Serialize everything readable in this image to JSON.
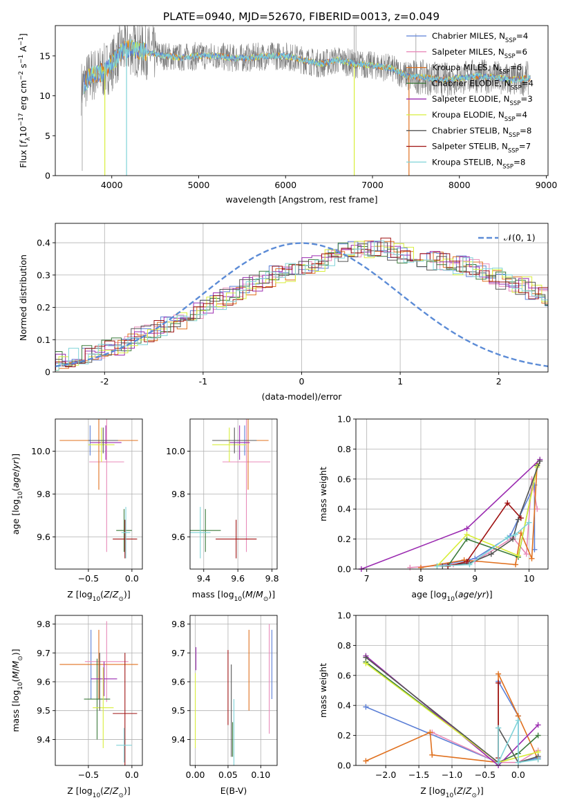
{
  "figure_title": "PLATE=0940, MJD=52670, FIBERID=0013, z=0.049",
  "colors": {
    "Chabrier MILES": "#5b7fd6",
    "Salpeter MILES": "#e88ab8",
    "Kroupa MILES": "#e0701e",
    "Chabrier ELODIE": "#3a7a3a",
    "Salpeter ELODIE": "#9a2ab0",
    "Kroupa ELODIE": "#d8ee3a",
    "Chabrier STELIB": "#555555",
    "Salpeter STELIB": "#9e1010",
    "Kroupa STELIB": "#7fd3d8",
    "data_grey": "#777777",
    "normal_curve": "#5b8bd6"
  },
  "chart_data": [
    {
      "id": "spectrum",
      "type": "line",
      "xlabel": "wavelength [Angstrom, rest frame]",
      "ylabel": "Flux [f_λ 10^-17 erg cm^-2 s^-1 A^-1]",
      "ylabel_parts": {
        "pre": "Flux [",
        "f": "f",
        "fsub": "λ",
        "mid": "10",
        "exp1": "−17",
        "unit": " erg cm",
        "exp2": "−2",
        "unit2": " s",
        "exp3": "−1",
        "end": " A",
        "exp4": "−1",
        "close": "]"
      },
      "xlim": [
        3350,
        9020
      ],
      "ylim": [
        0,
        18.8
      ],
      "xticks": [
        4000,
        5000,
        6000,
        7000,
        8000,
        9000
      ],
      "yticks": [
        0,
        5,
        10,
        15
      ],
      "grid": false,
      "legend_position": "top-right",
      "legend": [
        {
          "label": "Chabrier MILES, N",
          "sub": "SSP",
          "eq": "=4"
        },
        {
          "label": "Salpeter MILES, N",
          "sub": "SSP",
          "eq": "=6"
        },
        {
          "label": "Kroupa MILES, N",
          "sub": "SSP",
          "eq": "=6"
        },
        {
          "label": "Chabrier ELODIE, N",
          "sub": "SSP",
          "eq": "=4"
        },
        {
          "label": "Salpeter ELODIE, N",
          "sub": "SSP",
          "eq": "=3"
        },
        {
          "label": "Kroupa ELODIE, N",
          "sub": "SSP",
          "eq": "=4"
        },
        {
          "label": "Chabrier STELIB, N",
          "sub": "SSP",
          "eq": "=8"
        },
        {
          "label": "Salpeter STELIB, N",
          "sub": "SSP",
          "eq": "=7"
        },
        {
          "label": "Kroupa STELIB, N",
          "sub": "SSP",
          "eq": "=8"
        }
      ],
      "data_envelope": {
        "x": [
          3650,
          3750,
          3900,
          4000,
          4100,
          4200,
          4400,
          4600,
          4800,
          5000,
          5200,
          5400,
          5600,
          5800,
          6000,
          6200,
          6400,
          6600,
          6800,
          7000,
          7200,
          7400,
          7600,
          7800,
          8000,
          8200,
          8400,
          8600,
          8800
        ],
        "y": [
          11,
          12.5,
          13,
          14,
          15.5,
          16,
          15.5,
          15,
          14.8,
          15,
          15,
          14.7,
          14.8,
          15,
          15,
          14.5,
          14,
          14.5,
          14,
          13.8,
          13.5,
          12.5,
          12.3,
          12,
          12.2,
          12.5,
          12.3,
          12,
          12.2
        ]
      },
      "drops": [
        {
          "x": 3920,
          "color": "Kroupa ELODIE"
        },
        {
          "x": 4170,
          "color": "Kroupa STELIB"
        },
        {
          "x": 6790,
          "color": "Kroupa ELODIE"
        },
        {
          "x": 7420,
          "color": "Kroupa MILES"
        }
      ]
    },
    {
      "id": "residual-histogram",
      "type": "histogram",
      "xlabel": "(data-model)/error",
      "ylabel": "Normed distribution",
      "xlim": [
        -2.5,
        2.5
      ],
      "ylim": [
        0,
        0.46
      ],
      "xticks": [
        -2,
        -1,
        0,
        1,
        2
      ],
      "yticks": [
        0,
        0.1,
        0.2,
        0.3,
        0.4
      ],
      "grid": true,
      "legend_position": "top-right",
      "legend_label": "𝒩(0, 1)",
      "bin_width": 0.1,
      "base_values": [
        0.035,
        0.04,
        0.045,
        0.05,
        0.055,
        0.06,
        0.07,
        0.08,
        0.095,
        0.11,
        0.12,
        0.13,
        0.145,
        0.16,
        0.175,
        0.19,
        0.205,
        0.22,
        0.235,
        0.25,
        0.265,
        0.28,
        0.29,
        0.3,
        0.31,
        0.32,
        0.33,
        0.34,
        0.35,
        0.36,
        0.37,
        0.375,
        0.38,
        0.385,
        0.385,
        0.375,
        0.36,
        0.355,
        0.35,
        0.345,
        0.34,
        0.33,
        0.33,
        0.32,
        0.31,
        0.3,
        0.285,
        0.275,
        0.265,
        0.25,
        0.235,
        0.22,
        0.205,
        0.19,
        0.175,
        0.16,
        0.15,
        0.14,
        0.13,
        0.12,
        0.11,
        0.1,
        0.09,
        0.085,
        0.075,
        0.07,
        0.06,
        0.055,
        0.05,
        0.045,
        0.04,
        0.035,
        0.03,
        0.03,
        0.025,
        0.028,
        0.03,
        0.028,
        0.025,
        0.025
      ]
    },
    {
      "id": "age-vs-Z",
      "type": "errorbar",
      "xlabel": "Z [log10(Z/Z⊙)]",
      "ylabel": "age [log10(age/yr)]",
      "xlim": [
        -0.88,
        0.12
      ],
      "ylim": [
        9.45,
        10.15
      ],
      "xticks": [
        -0.5,
        0.0
      ],
      "xticklabels": [
        "−0.5",
        "0.0"
      ],
      "yticks": [
        9.6,
        9.8,
        10.0
      ],
      "yticklabels": [
        "9.6",
        "9.8",
        "10.0"
      ],
      "grid": true,
      "points": [
        {
          "series": "Chabrier MILES",
          "x": -0.48,
          "xerr": 0.17,
          "y": 10.05,
          "yerr": 0.07
        },
        {
          "series": "Salpeter MILES",
          "x": -0.29,
          "xerr": 0.2,
          "y": 9.95,
          "yerr": 0.42
        },
        {
          "series": "Kroupa MILES",
          "x": -0.38,
          "xerr": 0.45,
          "y": 10.05,
          "yerr": 0.23
        },
        {
          "series": "Chabrier ELODIE",
          "x": -0.09,
          "xerr": 0.09,
          "y": 9.63,
          "yerr": 0.1
        },
        {
          "series": "Salpeter ELODIE",
          "x": -0.3,
          "xerr": 0.18,
          "y": 10.04,
          "yerr": 0.08
        },
        {
          "series": "Kroupa ELODIE",
          "x": -0.35,
          "xerr": 0.15,
          "y": 10.03,
          "yerr": 0.08
        },
        {
          "series": "Chabrier STELIB",
          "x": -0.33,
          "xerr": 0.17,
          "y": 10.05,
          "yerr": 0.06
        },
        {
          "series": "Salpeter STELIB",
          "x": -0.08,
          "xerr": 0.14,
          "y": 9.59,
          "yerr": 0.09
        },
        {
          "series": "Kroupa STELIB",
          "x": -0.07,
          "xerr": 0.05,
          "y": 9.62,
          "yerr": 0.12
        }
      ]
    },
    {
      "id": "age-vs-mass",
      "type": "errorbar",
      "xlabel": "mass [log10(M/M⊙)]",
      "ylabel": "",
      "xlim": [
        9.32,
        9.83
      ],
      "ylim": [
        9.45,
        10.15
      ],
      "xticks": [
        9.4,
        9.6,
        9.8
      ],
      "xticklabels": [
        "9.4",
        "9.6",
        "9.8"
      ],
      "yticks": [
        9.6,
        9.8,
        10.0
      ],
      "yticklabels": [
        "9.6",
        "9.8",
        "10.0"
      ],
      "grid": true,
      "points": [
        {
          "series": "Chabrier MILES",
          "x": 9.64,
          "xerr": 0.12,
          "y": 10.05,
          "yerr": 0.07
        },
        {
          "series": "Salpeter MILES",
          "x": 9.65,
          "xerr": 0.14,
          "y": 9.95,
          "yerr": 0.42
        },
        {
          "series": "Kroupa MILES",
          "x": 9.66,
          "xerr": 0.12,
          "y": 10.05,
          "yerr": 0.23
        },
        {
          "series": "Chabrier ELODIE",
          "x": 9.41,
          "xerr": 0.09,
          "y": 9.63,
          "yerr": 0.1
        },
        {
          "series": "Salpeter ELODIE",
          "x": 9.61,
          "xerr": 0.06,
          "y": 10.04,
          "yerr": 0.08
        },
        {
          "series": "Kroupa ELODIE",
          "x": 9.55,
          "xerr": 0.1,
          "y": 10.03,
          "yerr": 0.08
        },
        {
          "series": "Chabrier STELIB",
          "x": 9.58,
          "xerr": 0.13,
          "y": 10.05,
          "yerr": 0.06
        },
        {
          "series": "Salpeter STELIB",
          "x": 9.59,
          "xerr": 0.12,
          "y": 9.59,
          "yerr": 0.09
        },
        {
          "series": "Kroupa STELIB",
          "x": 9.38,
          "xerr": 0.06,
          "y": 9.62,
          "yerr": 0.12
        }
      ]
    },
    {
      "id": "mass-weight-vs-age",
      "type": "line",
      "xlabel": "age [log10(age/yr)]",
      "ylabel": "mass weight",
      "xlim": [
        6.8,
        10.35
      ],
      "ylim": [
        0,
        1.0
      ],
      "xticks": [
        7,
        8,
        9,
        10
      ],
      "xticklabels": [
        "7",
        "8",
        "9",
        "10"
      ],
      "yticks": [
        0,
        0.2,
        0.4,
        0.6,
        0.8,
        1.0
      ],
      "yticklabels": [
        "0.0",
        "0.2",
        "0.4",
        "0.6",
        "0.8",
        "1.0"
      ],
      "grid": true,
      "series": [
        {
          "name": "Chabrier MILES",
          "x": [
            8.3,
            9.0,
            9.65,
            10.1,
            10.1
          ],
          "y": [
            0.02,
            0.07,
            0.22,
            0.56,
            0.13
          ]
        },
        {
          "name": "Salpeter MILES",
          "x": [
            7.8,
            8.6,
            9.0,
            9.7,
            9.95,
            10.05,
            10.15
          ],
          "y": [
            0.01,
            0.03,
            0.05,
            0.21,
            0.1,
            0.6,
            0.4
          ]
        },
        {
          "name": "Kroupa MILES",
          "x": [
            8.0,
            8.8,
            9.75,
            9.85,
            10.05,
            10.15
          ],
          "y": [
            0.01,
            0.06,
            0.03,
            0.24,
            0.07,
            0.7
          ]
        },
        {
          "name": "Chabrier ELODIE",
          "x": [
            8.5,
            8.85,
            9.8,
            10.15
          ],
          "y": [
            0.02,
            0.2,
            0.08,
            0.69
          ]
        },
        {
          "name": "Salpeter ELODIE",
          "x": [
            6.9,
            8.85,
            10.2
          ],
          "y": [
            0.0,
            0.27,
            0.73
          ]
        },
        {
          "name": "Kroupa ELODIE",
          "x": [
            8.3,
            8.85,
            9.8,
            10.15
          ],
          "y": [
            0.02,
            0.23,
            0.09,
            0.68
          ]
        },
        {
          "name": "Chabrier STELIB",
          "x": [
            8.4,
            8.9,
            9.3,
            9.7,
            9.8,
            10.2
          ],
          "y": [
            0.02,
            0.04,
            0.1,
            0.2,
            0.33,
            0.72
          ]
        },
        {
          "name": "Salpeter STELIB",
          "x": [
            8.5,
            8.85,
            9.6,
            9.85
          ],
          "y": [
            0.02,
            0.05,
            0.44,
            0.34
          ]
        },
        {
          "name": "Kroupa STELIB",
          "x": [
            8.3,
            8.9,
            9.6,
            9.75,
            10.0
          ],
          "y": [
            0.02,
            0.03,
            0.21,
            0.23,
            0.31
          ]
        }
      ]
    },
    {
      "id": "mass-vs-Z",
      "type": "errorbar",
      "xlabel": "Z [log10(Z/Z⊙)]",
      "ylabel": "mass [log10(M/M⊙)]",
      "xlim": [
        -0.88,
        0.12
      ],
      "ylim": [
        9.31,
        9.83
      ],
      "xticks": [
        -0.5,
        0.0
      ],
      "xticklabels": [
        "−0.5",
        "0.0"
      ],
      "yticks": [
        9.4,
        9.5,
        9.6,
        9.7,
        9.8
      ],
      "yticklabels": [
        "9.4",
        "9.5",
        "9.6",
        "9.7",
        "9.8"
      ],
      "grid": true,
      "points": [
        {
          "series": "Chabrier MILES",
          "x": -0.47,
          "xerr": 0.0,
          "y": 9.66,
          "yerr": 0.12
        },
        {
          "series": "Salpeter MILES",
          "x": -0.29,
          "xerr": 0.25,
          "y": 9.67,
          "yerr": 0.14
        },
        {
          "series": "Kroupa MILES",
          "x": -0.38,
          "xerr": 0.45,
          "y": 9.66,
          "yerr": 0.12
        },
        {
          "series": "Chabrier ELODIE",
          "x": -0.4,
          "xerr": 0.15,
          "y": 9.54,
          "yerr": 0.14
        },
        {
          "series": "Salpeter ELODIE",
          "x": -0.32,
          "xerr": 0.15,
          "y": 9.61,
          "yerr": 0.06
        },
        {
          "series": "Kroupa ELODIE",
          "x": -0.33,
          "xerr": 0.12,
          "y": 9.51,
          "yerr": 0.14
        },
        {
          "series": "Chabrier STELIB",
          "x": -0.37,
          "xerr": 0.0,
          "y": 9.6,
          "yerr": 0.1
        },
        {
          "series": "Salpeter STELIB",
          "x": -0.08,
          "xerr": 0.14,
          "y": 9.49,
          "yerr": 0.21
        },
        {
          "series": "Kroupa STELIB",
          "x": -0.09,
          "xerr": 0.09,
          "y": 9.38,
          "yerr": 0.06
        }
      ]
    },
    {
      "id": "mass-vs-EBV",
      "type": "errorbar",
      "xlabel": "E(B-V)",
      "ylabel": "",
      "xlim": [
        -0.008,
        0.125
      ],
      "ylim": [
        9.31,
        9.83
      ],
      "xticks": [
        0.0,
        0.05,
        0.1
      ],
      "xticklabels": [
        "0.00",
        "0.05",
        "0.10"
      ],
      "yticks": [
        9.4,
        9.5,
        9.6,
        9.7,
        9.8
      ],
      "yticklabels": [
        "9.4",
        "9.5",
        "9.6",
        "9.7",
        "9.8"
      ],
      "grid": true,
      "points": [
        {
          "series": "Chabrier MILES",
          "x": 0.117,
          "xerr": 0,
          "y": 9.66,
          "yerr": 0.12
        },
        {
          "series": "Salpeter MILES",
          "x": 0.113,
          "xerr": 0,
          "y": 9.61,
          "yerr": 0.19
        },
        {
          "series": "Kroupa MILES",
          "x": 0.082,
          "xerr": 0,
          "y": 9.64,
          "yerr": 0.14
        },
        {
          "series": "Chabrier ELODIE",
          "x": 0.057,
          "xerr": 0,
          "y": 9.4,
          "yerr": 0.06
        },
        {
          "series": "Salpeter ELODIE",
          "x": 0.001,
          "xerr": 0,
          "y": 9.68,
          "yerr": 0.04
        },
        {
          "series": "Kroupa ELODIE",
          "x": 0.0,
          "xerr": 0,
          "y": 9.5,
          "yerr": 0.13
        },
        {
          "series": "Chabrier STELIB",
          "x": 0.055,
          "xerr": 0,
          "y": 9.5,
          "yerr": 0.16
        },
        {
          "series": "Salpeter STELIB",
          "x": 0.05,
          "xerr": 0,
          "y": 9.58,
          "yerr": 0.13
        },
        {
          "series": "Kroupa STELIB",
          "x": 0.059,
          "xerr": 0,
          "y": 9.42,
          "yerr": 0.12
        }
      ]
    },
    {
      "id": "mass-weight-vs-Z",
      "type": "line",
      "xlabel": "Z [log10(Z/Z⊙)]",
      "ylabel": "mass weight",
      "xlim": [
        -2.45,
        0.45
      ],
      "ylim": [
        0,
        1.0
      ],
      "xticks": [
        -2.0,
        -1.5,
        -1.0,
        -0.5,
        0.0
      ],
      "xticklabels": [
        "−2.0",
        "−1.5",
        "−1.0",
        "−0.5",
        "0.0"
      ],
      "yticks": [
        0,
        0.2,
        0.4,
        0.6,
        0.8,
        1.0
      ],
      "yticklabels": [
        "0.0",
        "0.2",
        "0.4",
        "0.6",
        "0.8",
        "1.0"
      ],
      "grid": true,
      "series": [
        {
          "name": "Chabrier MILES",
          "x": [
            -2.3,
            -0.3,
            -0.3,
            0.0,
            0.0,
            0.3
          ],
          "y": [
            0.39,
            0.02,
            0.56,
            0.33,
            0.02,
            0.05
          ]
        },
        {
          "name": "Salpeter MILES",
          "x": [
            -1.3,
            -0.3,
            0.0,
            0.3
          ],
          "y": [
            0.22,
            0.02,
            0.02,
            0.1
          ]
        },
        {
          "name": "Kroupa MILES",
          "x": [
            -2.3,
            -1.33,
            -1.3,
            -0.3,
            -0.3,
            0.0,
            0.3
          ],
          "y": [
            0.03,
            0.22,
            0.07,
            0.02,
            0.61,
            0.33,
            0.04
          ]
        },
        {
          "name": "Chabrier ELODIE",
          "x": [
            -2.3,
            -0.3,
            0.0,
            0.3
          ],
          "y": [
            0.69,
            0.02,
            0.08,
            0.2
          ]
        },
        {
          "name": "Salpeter ELODIE",
          "x": [
            -2.3,
            -0.3,
            0.3
          ],
          "y": [
            0.73,
            0.0,
            0.27
          ]
        },
        {
          "name": "Kroupa ELODIE",
          "x": [
            -2.3,
            -0.3,
            0.3
          ],
          "y": [
            0.68,
            0.02,
            0.09
          ]
        },
        {
          "name": "Chabrier STELIB",
          "x": [
            -2.3,
            -0.3,
            -0.3,
            0.0,
            0.3
          ],
          "y": [
            0.72,
            0.02,
            0.25,
            0.02,
            0.06
          ]
        },
        {
          "name": "Salpeter STELIB",
          "x": [
            -0.3,
            -0.3
          ],
          "y": [
            0.55,
            0.05
          ]
        },
        {
          "name": "Kroupa STELIB",
          "x": [
            -0.3,
            -0.3,
            0.0,
            0.0,
            0.3
          ],
          "y": [
            0.25,
            0.02,
            0.3,
            0.02,
            0.04
          ]
        }
      ]
    }
  ]
}
